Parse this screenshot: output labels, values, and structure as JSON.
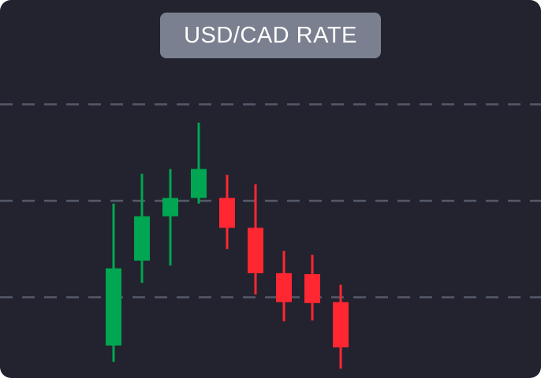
{
  "chart_data": {
    "type": "candlestick",
    "title": "USD/CAD RATE",
    "xlabel": "",
    "ylabel": "",
    "ylim": [
      0,
      4
    ],
    "grid": {
      "horizontal": true,
      "style": "dashed",
      "levels": [
        1,
        2,
        3
      ]
    },
    "colors": {
      "up": "#00a651",
      "down": "#ff2731",
      "grid": "#555a6a",
      "background": "#22232e",
      "title_bg": "#7b8090"
    },
    "candles": [
      {
        "open": 0.5,
        "close": 1.3,
        "high": 1.97,
        "low": 0.33,
        "direction": "up"
      },
      {
        "open": 1.38,
        "close": 1.84,
        "high": 2.28,
        "low": 1.15,
        "direction": "up"
      },
      {
        "open": 1.84,
        "close": 2.03,
        "high": 2.33,
        "low": 1.33,
        "direction": "up"
      },
      {
        "open": 2.03,
        "close": 2.33,
        "high": 2.81,
        "low": 1.97,
        "direction": "up"
      },
      {
        "open": 2.03,
        "close": 1.72,
        "high": 2.27,
        "low": 1.5,
        "direction": "down"
      },
      {
        "open": 1.72,
        "close": 1.25,
        "high": 2.17,
        "low": 1.03,
        "direction": "down"
      },
      {
        "open": 1.25,
        "close": 0.95,
        "high": 1.48,
        "low": 0.75,
        "direction": "down"
      },
      {
        "open": 1.24,
        "close": 0.94,
        "high": 1.44,
        "low": 0.76,
        "direction": "down"
      },
      {
        "open": 0.95,
        "close": 0.48,
        "high": 1.13,
        "low": 0.26,
        "direction": "down"
      }
    ]
  }
}
